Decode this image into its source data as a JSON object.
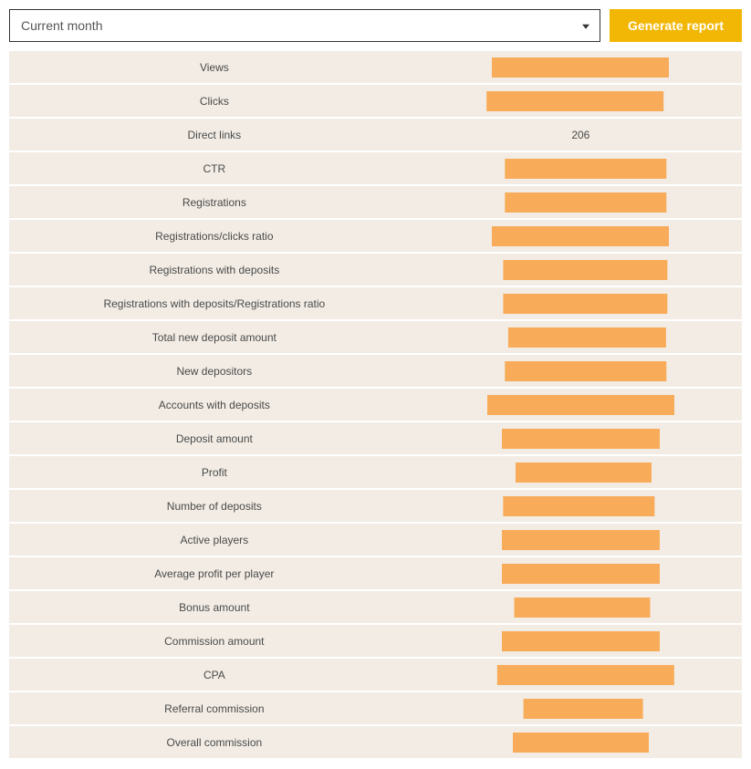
{
  "controls": {
    "period_label": "Current month",
    "generate_button_label": "Generate report"
  },
  "colors": {
    "row_bg": "#f2ece4",
    "bar_color": "#f8ac59",
    "button_bg": "#f2b705",
    "button_text": "#ffffff",
    "text_color": "#4a4a4a"
  },
  "rows": [
    {
      "label": "Views",
      "type": "bar",
      "bar_width_pct": 55,
      "bar_offset_pct": 0
    },
    {
      "label": "Clicks",
      "type": "bar",
      "bar_width_pct": 55,
      "bar_offset_pct": -3
    },
    {
      "label": "Direct links",
      "type": "text",
      "value": "206"
    },
    {
      "label": "CTR",
      "type": "bar",
      "bar_width_pct": 50,
      "bar_offset_pct": 3
    },
    {
      "label": "Registrations",
      "type": "bar",
      "bar_width_pct": 50,
      "bar_offset_pct": 3
    },
    {
      "label": "Registrations/clicks ratio",
      "type": "bar",
      "bar_width_pct": 55,
      "bar_offset_pct": 0
    },
    {
      "label": "Registrations with deposits",
      "type": "bar",
      "bar_width_pct": 51,
      "bar_offset_pct": 3
    },
    {
      "label": "Registrations with deposits/Registrations ratio",
      "type": "bar",
      "bar_width_pct": 51,
      "bar_offset_pct": 3
    },
    {
      "label": "Total new deposit amount",
      "type": "bar",
      "bar_width_pct": 49,
      "bar_offset_pct": 4
    },
    {
      "label": "New depositors",
      "type": "bar",
      "bar_width_pct": 50,
      "bar_offset_pct": 3
    },
    {
      "label": "Accounts with deposits",
      "type": "bar",
      "bar_width_pct": 58,
      "bar_offset_pct": 0
    },
    {
      "label": "Deposit amount",
      "type": "bar",
      "bar_width_pct": 49,
      "bar_offset_pct": 0
    },
    {
      "label": "Profit",
      "type": "bar",
      "bar_width_pct": 42,
      "bar_offset_pct": 2
    },
    {
      "label": "Number of deposits",
      "type": "bar",
      "bar_width_pct": 47,
      "bar_offset_pct": -1
    },
    {
      "label": "Active players",
      "type": "bar",
      "bar_width_pct": 49,
      "bar_offset_pct": 0
    },
    {
      "label": "Average profit per player",
      "type": "bar",
      "bar_width_pct": 49,
      "bar_offset_pct": 0
    },
    {
      "label": "Bonus amount",
      "type": "bar",
      "bar_width_pct": 42,
      "bar_offset_pct": 1
    },
    {
      "label": "Commission amount",
      "type": "bar",
      "bar_width_pct": 49,
      "bar_offset_pct": 0
    },
    {
      "label": "CPA",
      "type": "bar",
      "bar_width_pct": 55,
      "bar_offset_pct": 3
    },
    {
      "label": "Referral commission",
      "type": "bar",
      "bar_width_pct": 37,
      "bar_offset_pct": 2
    },
    {
      "label": "Overall commission",
      "type": "bar",
      "bar_width_pct": 42,
      "bar_offset_pct": 0
    }
  ]
}
